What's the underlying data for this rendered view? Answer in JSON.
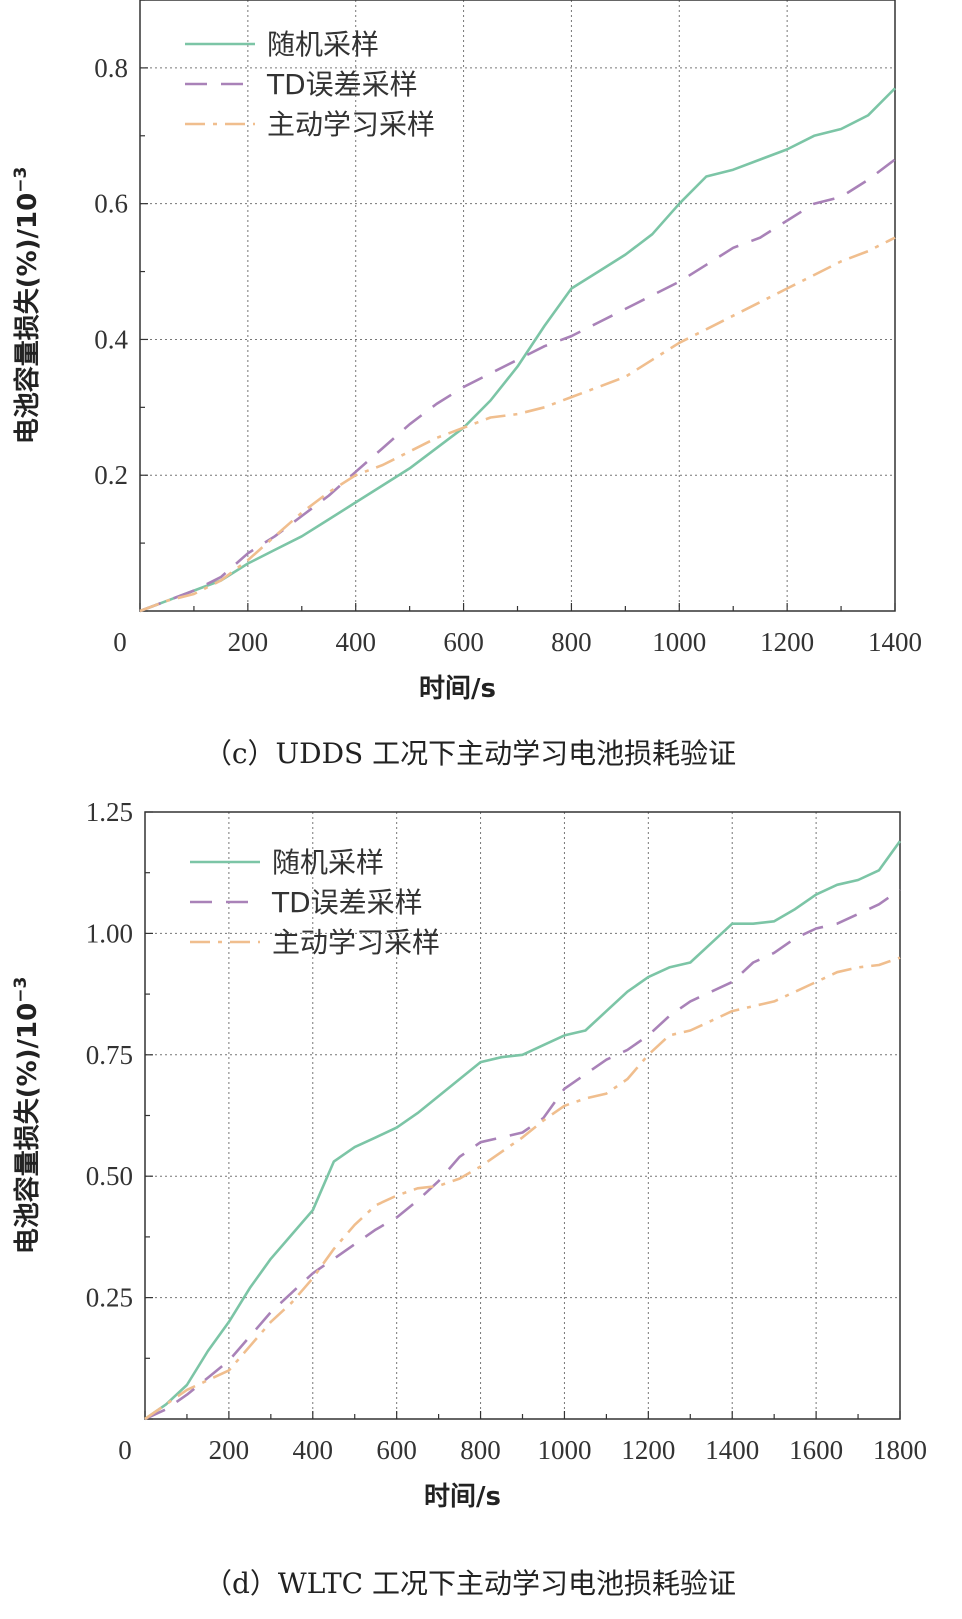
{
  "colors": {
    "random": "#7cc5a6",
    "td": "#a982b8",
    "active": "#f0be8e"
  },
  "chart_data": [
    {
      "type": "line",
      "caption": "（c）UDDS 工况下主动学习电池损耗验证",
      "xlabel": "时间/s",
      "ylabel": "电池容量损失(%)/10",
      "ylabel_exp": "−3",
      "xlim": [
        0,
        1400
      ],
      "ylim": [
        0,
        0.9
      ],
      "xticks": [
        0,
        200,
        400,
        600,
        800,
        1000,
        1200,
        1400
      ],
      "xtick_labels": [
        "0",
        "200",
        "400",
        "600",
        "800",
        "1000",
        "1200",
        "1400"
      ],
      "yticks": [
        0.2,
        0.4,
        0.6,
        0.8
      ],
      "ytick_labels": [
        "0.2",
        "0.4",
        "0.6",
        "0.8"
      ],
      "grid": true,
      "legend": "top-left",
      "series": [
        {
          "name": "随机采样",
          "style": "solid",
          "color": "#7cc5a6",
          "x": [
            0,
            50,
            100,
            150,
            200,
            250,
            300,
            350,
            400,
            450,
            500,
            550,
            600,
            650,
            700,
            750,
            800,
            850,
            900,
            950,
            1000,
            1050,
            1100,
            1150,
            1200,
            1250,
            1300,
            1350,
            1400
          ],
          "y": [
            0.0,
            0.015,
            0.03,
            0.045,
            0.07,
            0.09,
            0.11,
            0.135,
            0.16,
            0.185,
            0.21,
            0.24,
            0.27,
            0.31,
            0.36,
            0.42,
            0.475,
            0.5,
            0.525,
            0.555,
            0.6,
            0.64,
            0.65,
            0.665,
            0.68,
            0.7,
            0.71,
            0.73,
            0.77
          ]
        },
        {
          "name": "TD误差采样",
          "style": "dashed",
          "color": "#a982b8",
          "x": [
            0,
            50,
            100,
            150,
            200,
            250,
            300,
            350,
            400,
            450,
            500,
            550,
            600,
            650,
            700,
            750,
            800,
            850,
            900,
            950,
            1000,
            1050,
            1100,
            1150,
            1200,
            1250,
            1300,
            1350,
            1400
          ],
          "y": [
            0.0,
            0.015,
            0.03,
            0.05,
            0.085,
            0.11,
            0.14,
            0.17,
            0.205,
            0.24,
            0.275,
            0.305,
            0.33,
            0.35,
            0.37,
            0.39,
            0.405,
            0.425,
            0.445,
            0.465,
            0.485,
            0.51,
            0.535,
            0.55,
            0.575,
            0.6,
            0.61,
            0.635,
            0.665
          ]
        },
        {
          "name": "主动学习采样",
          "style": "dashdot",
          "color": "#f0be8e",
          "x": [
            0,
            50,
            100,
            150,
            200,
            250,
            300,
            350,
            400,
            450,
            500,
            550,
            600,
            650,
            700,
            750,
            800,
            850,
            900,
            950,
            1000,
            1050,
            1100,
            1150,
            1200,
            1250,
            1300,
            1350,
            1400
          ],
          "y": [
            0.0,
            0.015,
            0.025,
            0.045,
            0.075,
            0.11,
            0.145,
            0.175,
            0.2,
            0.215,
            0.235,
            0.255,
            0.27,
            0.285,
            0.29,
            0.3,
            0.315,
            0.33,
            0.345,
            0.37,
            0.395,
            0.415,
            0.435,
            0.455,
            0.475,
            0.495,
            0.515,
            0.53,
            0.55
          ]
        }
      ]
    },
    {
      "type": "line",
      "caption": "（d）WLTC 工况下主动学习电池损耗验证",
      "xlabel": "时间/s",
      "ylabel": "电池容量损失(%)/10",
      "ylabel_exp": "−3",
      "xlim": [
        0,
        1800
      ],
      "ylim": [
        0,
        1.25
      ],
      "xticks": [
        0,
        200,
        400,
        600,
        800,
        1000,
        1200,
        1400,
        1600,
        1800
      ],
      "xtick_labels": [
        "0",
        "200",
        "400",
        "600",
        "800",
        "1000",
        "1200",
        "1400",
        "1600",
        "1800"
      ],
      "yticks": [
        0.25,
        0.5,
        0.75,
        1.0,
        1.25
      ],
      "ytick_labels": [
        "0.25",
        "0.50",
        "0.75",
        "1.00",
        "1.25"
      ],
      "grid": true,
      "legend": "top-left",
      "series": [
        {
          "name": "随机采样",
          "style": "solid",
          "color": "#7cc5a6",
          "x": [
            0,
            50,
            100,
            150,
            200,
            250,
            300,
            350,
            400,
            450,
            500,
            550,
            600,
            650,
            700,
            750,
            800,
            850,
            900,
            950,
            1000,
            1050,
            1100,
            1150,
            1200,
            1250,
            1300,
            1350,
            1400,
            1450,
            1500,
            1550,
            1600,
            1650,
            1700,
            1750,
            1800
          ],
          "y": [
            0.0,
            0.03,
            0.07,
            0.14,
            0.2,
            0.27,
            0.33,
            0.38,
            0.43,
            0.53,
            0.56,
            0.58,
            0.6,
            0.63,
            0.665,
            0.7,
            0.735,
            0.745,
            0.75,
            0.77,
            0.79,
            0.8,
            0.84,
            0.88,
            0.91,
            0.93,
            0.94,
            0.98,
            1.02,
            1.02,
            1.025,
            1.05,
            1.08,
            1.1,
            1.11,
            1.13,
            1.19
          ]
        },
        {
          "name": "TD误差采样",
          "style": "dashed",
          "color": "#a982b8",
          "x": [
            0,
            50,
            100,
            150,
            200,
            250,
            300,
            350,
            400,
            450,
            500,
            550,
            600,
            650,
            700,
            750,
            800,
            850,
            900,
            950,
            1000,
            1050,
            1100,
            1150,
            1200,
            1250,
            1300,
            1350,
            1400,
            1450,
            1500,
            1550,
            1600,
            1650,
            1700,
            1750,
            1800
          ],
          "y": [
            0.0,
            0.02,
            0.05,
            0.085,
            0.12,
            0.17,
            0.22,
            0.26,
            0.3,
            0.33,
            0.36,
            0.39,
            0.415,
            0.45,
            0.49,
            0.54,
            0.57,
            0.58,
            0.59,
            0.62,
            0.68,
            0.71,
            0.74,
            0.76,
            0.79,
            0.83,
            0.86,
            0.88,
            0.9,
            0.94,
            0.96,
            0.99,
            1.01,
            1.02,
            1.04,
            1.06,
            1.09
          ]
        },
        {
          "name": "主动学习采样",
          "style": "dashdot",
          "color": "#f0be8e",
          "x": [
            0,
            50,
            100,
            150,
            200,
            250,
            300,
            350,
            400,
            450,
            500,
            550,
            600,
            650,
            700,
            750,
            800,
            850,
            900,
            950,
            1000,
            1050,
            1100,
            1150,
            1200,
            1250,
            1300,
            1350,
            1400,
            1450,
            1500,
            1550,
            1600,
            1650,
            1700,
            1750,
            1800
          ],
          "y": [
            0.0,
            0.03,
            0.06,
            0.08,
            0.1,
            0.15,
            0.2,
            0.24,
            0.29,
            0.35,
            0.4,
            0.44,
            0.46,
            0.475,
            0.48,
            0.495,
            0.52,
            0.55,
            0.58,
            0.615,
            0.645,
            0.66,
            0.67,
            0.7,
            0.75,
            0.79,
            0.8,
            0.82,
            0.84,
            0.85,
            0.86,
            0.88,
            0.9,
            0.92,
            0.93,
            0.935,
            0.95
          ]
        }
      ]
    }
  ]
}
